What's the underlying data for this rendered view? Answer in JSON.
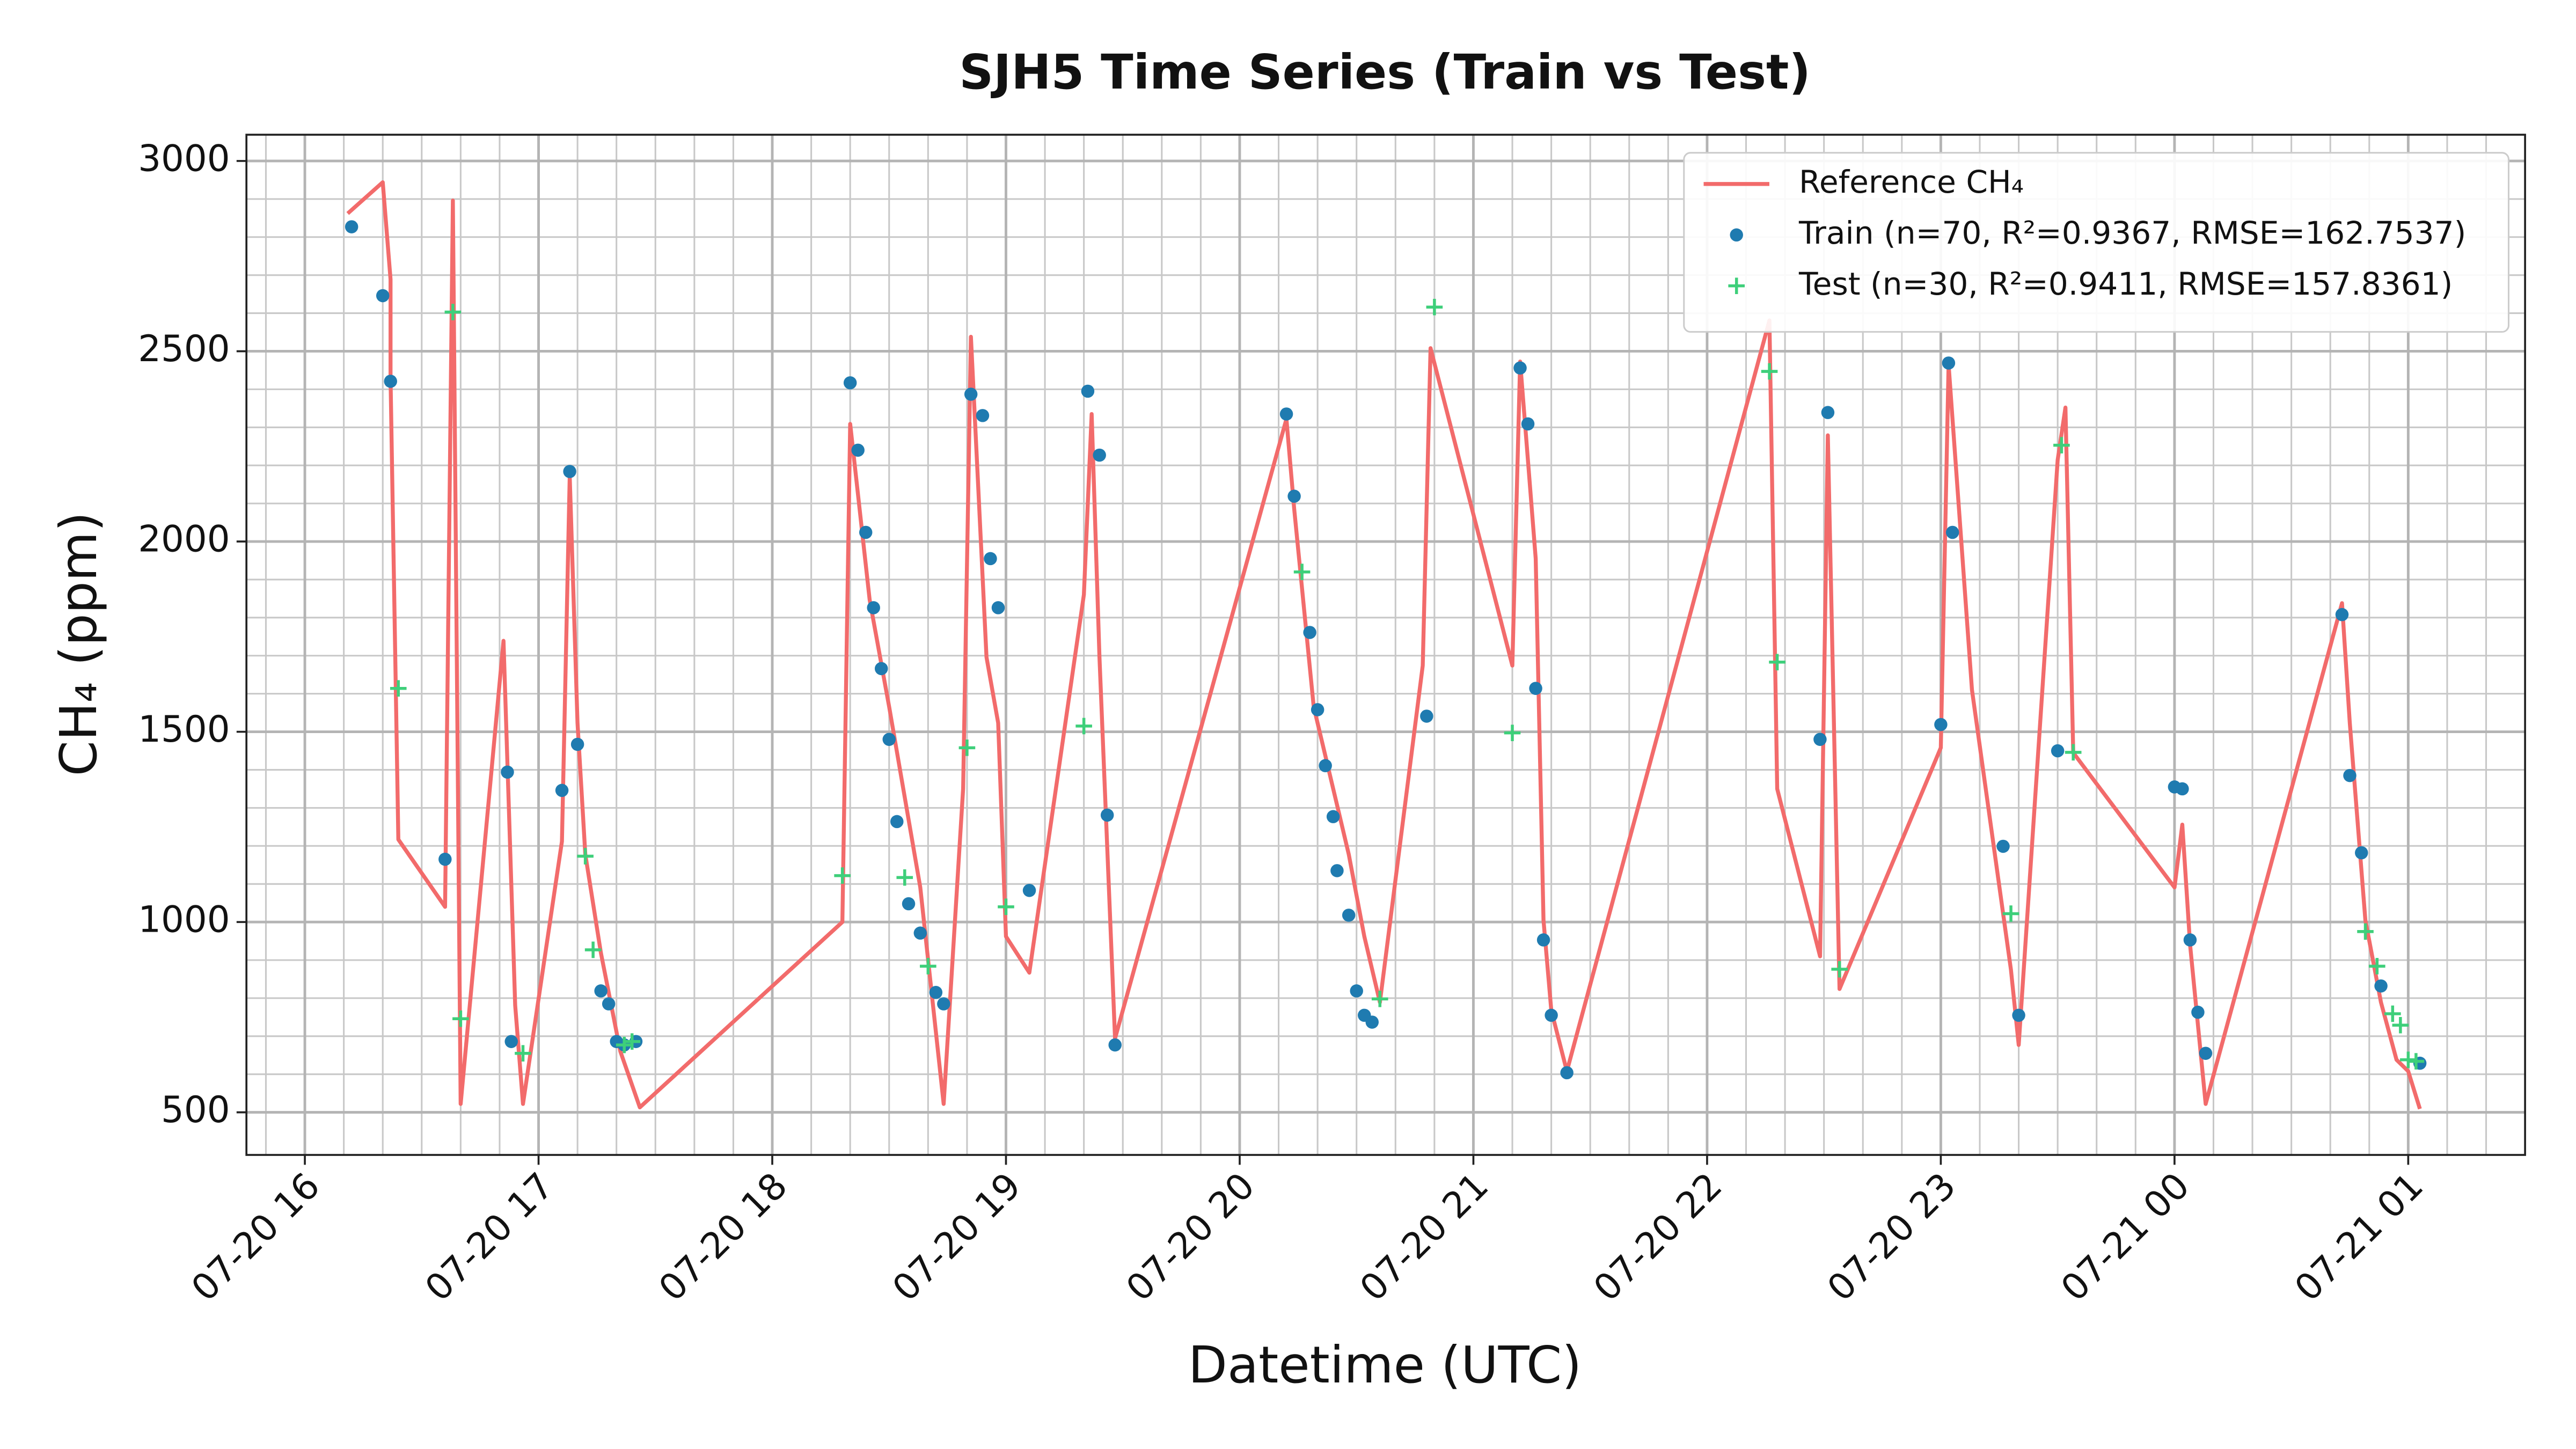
{
  "chart_data": {
    "type": "line",
    "title": "SJH5 Time Series (Train vs Test)",
    "x_label": "Datetime (UTC)",
    "y_label": "CH₄ (ppm)",
    "xlim": [
      "07-20 15:45",
      "07-21 01:30"
    ],
    "xticks": [
      "07-20 16",
      "07-20 17",
      "07-20 18",
      "07-20 19",
      "07-20 20",
      "07-20 21",
      "07-20 22",
      "07-20 23",
      "07-21 00",
      "07-21 01"
    ],
    "ylim": [
      388,
      3069
    ],
    "yticks": [
      500,
      1000,
      1500,
      2000,
      2500,
      3000
    ],
    "grid": true,
    "minor_grid": true,
    "legend": "upper right",
    "series": [
      {
        "name": "Reference CH₄",
        "color": "#f26b6b",
        "kind": "line",
        "x": [
          "07-20 16:11",
          "07-20 16:20",
          "07-20 16:22",
          "07-20 16:22",
          "07-20 16:24",
          "07-20 16:36",
          "07-20 16:38",
          "07-20 16:40",
          "07-20 16:51",
          "07-20 16:54",
          "07-20 16:56",
          "07-20 17:06",
          "07-20 17:08",
          "07-20 17:10",
          "07-20 17:12",
          "07-20 17:16",
          "07-20 17:21",
          "07-20 17:26",
          "07-20 18:18",
          "07-20 18:20",
          "07-20 18:25",
          "07-20 18:30",
          "07-20 18:38",
          "07-20 18:44",
          "07-20 18:49",
          "07-20 18:51",
          "07-20 18:55",
          "07-20 18:58",
          "07-20 19:00",
          "07-20 19:06",
          "07-20 19:20",
          "07-20 19:22",
          "07-20 19:24",
          "07-20 19:28",
          "07-20 20:12",
          "07-20 20:14",
          "07-20 20:19",
          "07-20 20:28",
          "07-20 20:32",
          "07-20 20:36",
          "07-20 20:47",
          "07-20 20:49",
          "07-20 21:10",
          "07-20 21:12",
          "07-20 21:16",
          "07-20 21:18",
          "07-20 21:20",
          "07-20 21:24",
          "07-20 22:16",
          "07-20 22:18",
          "07-20 22:29",
          "07-20 22:31",
          "07-20 22:34",
          "07-20 23:00",
          "07-20 23:02",
          "07-20 23:08",
          "07-20 23:18",
          "07-20 23:20",
          "07-20 23:30",
          "07-20 23:32",
          "07-20 23:34",
          "07-21 00:00",
          "07-21 00:02",
          "07-21 00:04",
          "07-21 00:08",
          "07-21 00:43",
          "07-21 00:45",
          "07-21 00:49",
          "07-21 00:53",
          "07-21 00:57",
          "07-21 01:00",
          "07-21 01:03"
        ],
        "values": [
          2862,
          2944,
          2689,
          2430,
          1217,
          1040,
          2896,
          522,
          1739,
          781,
          522,
          1212,
          2171,
          1523,
          1178,
          919,
          660,
          513,
          1000,
          2309,
          1847,
          1566,
          1091,
          522,
          1350,
          2538,
          1696,
          1523,
          962,
          867,
          1860,
          2335,
          1696,
          694,
          2322,
          2085,
          1566,
          1178,
          962,
          789,
          1674,
          2508,
          1674,
          2473,
          1955,
          1005,
          768,
          608,
          2581,
          1350,
          910,
          2279,
          824,
          1458,
          2465,
          1610,
          875,
          677,
          2214,
          2352,
          1445,
          1091,
          1256,
          940,
          522,
          1838,
          1523,
          1005,
          789,
          638,
          608,
          509
        ]
      },
      {
        "name": "Train (n=70, R²=0.9367, RMSE=162.7537)",
        "color": "#1f7bb0",
        "kind": "scatter",
        "marker": "o",
        "x": [
          "07-20 16:12",
          "07-20 16:20",
          "07-20 16:22",
          "07-20 16:36",
          "07-20 16:52",
          "07-20 16:53",
          "07-20 17:06",
          "07-20 17:08",
          "07-20 17:10",
          "07-20 17:16",
          "07-20 17:18",
          "07-20 17:20",
          "07-20 17:22",
          "07-20 17:25",
          "07-20 18:20",
          "07-20 18:22",
          "07-20 18:24",
          "07-20 18:26",
          "07-20 18:28",
          "07-20 18:30",
          "07-20 18:32",
          "07-20 18:35",
          "07-20 18:38",
          "07-20 18:42",
          "07-20 18:44",
          "07-20 18:51",
          "07-20 18:54",
          "07-20 18:56",
          "07-20 18:58",
          "07-20 19:06",
          "07-20 19:21",
          "07-20 19:24",
          "07-20 19:26",
          "07-20 19:28",
          "07-20 20:12",
          "07-20 20:14",
          "07-20 20:18",
          "07-20 20:20",
          "07-20 20:22",
          "07-20 20:24",
          "07-20 20:25",
          "07-20 20:28",
          "07-20 20:30",
          "07-20 20:32",
          "07-20 20:34",
          "07-20 20:48",
          "07-20 21:12",
          "07-20 21:14",
          "07-20 21:16",
          "07-20 21:18",
          "07-20 21:20",
          "07-20 21:24",
          "07-20 22:29",
          "07-20 22:31",
          "07-20 23:00",
          "07-20 23:02",
          "07-20 23:03",
          "07-20 23:16",
          "07-20 23:20",
          "07-20 23:30",
          "07-21 00:00",
          "07-21 00:02",
          "07-21 00:04",
          "07-21 00:06",
          "07-21 00:08",
          "07-21 00:43",
          "07-21 00:45",
          "07-21 00:48",
          "07-21 00:53",
          "07-21 01:03"
        ],
        "values": [
          2827,
          2646,
          2421,
          1165,
          1394,
          686,
          1346,
          2184,
          1467,
          819,
          785,
          686,
          677,
          686,
          2417,
          2240,
          2024,
          1826,
          1666,
          1480,
          1264,
          1048,
          971,
          815,
          785,
          2387,
          2331,
          1955,
          1826,
          1083,
          2395,
          2227,
          1281,
          677,
          2335,
          2119,
          1761,
          1558,
          1411,
          1277,
          1135,
          1018,
          819,
          755,
          737,
          1541,
          2456,
          2309,
          1614,
          953,
          755,
          604,
          1480,
          2339,
          1519,
          2469,
          2024,
          1199,
          755,
          1450,
          1355,
          1350,
          953,
          763,
          655,
          1808,
          1385,
          1182,
          832,
          629
        ]
      },
      {
        "name": "Test (n=30, R²=0.9411, RMSE=157.8361)",
        "color": "#3ecf7a",
        "kind": "scatter",
        "marker": "+",
        "x": [
          "07-20 16:24",
          "07-20 16:38",
          "07-20 16:40",
          "07-20 16:56",
          "07-20 17:12",
          "07-20 17:14",
          "07-20 17:22",
          "07-20 17:24",
          "07-20 18:18",
          "07-20 18:34",
          "07-20 18:40",
          "07-20 18:50",
          "07-20 19:00",
          "07-20 19:20",
          "07-20 20:16",
          "07-20 20:36",
          "07-20 20:50",
          "07-20 21:10",
          "07-20 22:16",
          "07-20 22:18",
          "07-20 22:34",
          "07-20 23:18",
          "07-20 23:31",
          "07-20 23:34",
          "07-21 00:49",
          "07-21 00:52",
          "07-21 00:56",
          "07-21 00:58",
          "07-21 01:00",
          "07-21 01:02"
        ],
        "values": [
          1614,
          2603,
          746,
          655,
          1173,
          927,
          677,
          686,
          1122,
          1117,
          884,
          1458,
          1040,
          1515,
          1920,
          798,
          2616,
          1497,
          2447,
          1683,
          876,
          1022,
          2253,
          1446,
          975,
          884,
          759,
          729,
          638,
          634
        ]
      }
    ]
  }
}
